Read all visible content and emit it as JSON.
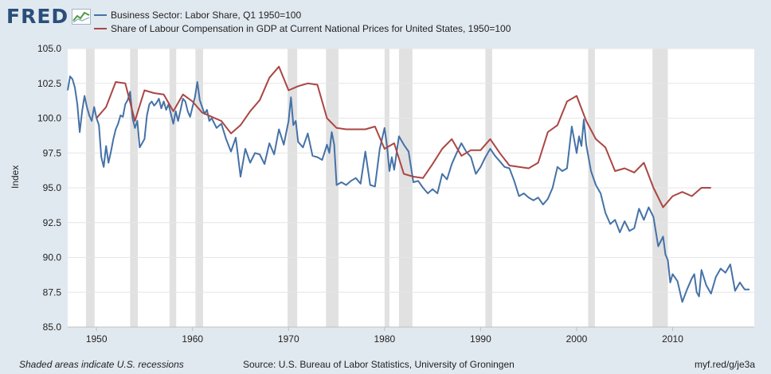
{
  "header": {
    "logo_text": "FRED",
    "logo_icon": "line-chart-icon"
  },
  "colors": {
    "background": "#e1e9f0",
    "plot_background": "#ffffff",
    "recession": "#e1e1e1",
    "series_1": "#4572a7",
    "series_2": "#aa4643",
    "brand": "#2a4e79"
  },
  "footer": {
    "note": "Shaded areas indicate U.S. recessions",
    "source": "Source: U.S. Bureau of Labor Statistics, University of Groningen",
    "short_url": "myf.red/g/je3a"
  },
  "chart_data": {
    "type": "line",
    "title": "",
    "ylabel": "Index",
    "xlabel": "",
    "xlim": [
      1947,
      2018.5
    ],
    "ylim": [
      85,
      105
    ],
    "y_ticks": [
      "85.0",
      "87.5",
      "90.0",
      "92.5",
      "95.0",
      "97.5",
      "100.0",
      "102.5",
      "105.0"
    ],
    "y_tick_values": [
      85,
      87.5,
      90,
      92.5,
      95,
      97.5,
      100,
      102.5,
      105
    ],
    "x_ticks": [
      "1950",
      "1960",
      "1970",
      "1980",
      "1990",
      "2000",
      "2010"
    ],
    "x_tick_values": [
      1950,
      1960,
      1970,
      1980,
      1990,
      2000,
      2010
    ],
    "grid": true,
    "legend_position": "top",
    "recessions": [
      [
        1948.9,
        1949.8
      ],
      [
        1953.5,
        1954.3
      ],
      [
        1957.6,
        1958.3
      ],
      [
        1960.3,
        1961.1
      ],
      [
        1969.9,
        1970.9
      ],
      [
        1973.9,
        1975.2
      ],
      [
        1980.0,
        1980.5
      ],
      [
        1981.5,
        1982.9
      ],
      [
        1990.5,
        1991.2
      ],
      [
        2001.2,
        2001.9
      ],
      [
        2007.9,
        2009.5
      ]
    ],
    "series": [
      {
        "name": "Business Sector: Labor Share, Q1 1950=100",
        "color": "#4572a7",
        "x": [
          1947.0,
          1947.25,
          1947.5,
          1947.75,
          1948.0,
          1948.25,
          1948.5,
          1948.75,
          1949.0,
          1949.25,
          1949.5,
          1949.75,
          1950.0,
          1950.25,
          1950.5,
          1950.75,
          1951.0,
          1951.25,
          1951.5,
          1951.75,
          1952.0,
          1952.25,
          1952.5,
          1952.75,
          1953.0,
          1953.25,
          1953.5,
          1953.75,
          1954.0,
          1954.25,
          1954.5,
          1954.75,
          1955.0,
          1955.25,
          1955.5,
          1955.75,
          1956.0,
          1956.25,
          1956.5,
          1956.75,
          1957.0,
          1957.25,
          1957.5,
          1957.75,
          1958.0,
          1958.25,
          1958.5,
          1958.75,
          1959.0,
          1959.25,
          1959.5,
          1959.75,
          1960.0,
          1960.25,
          1960.5,
          1960.75,
          1961.0,
          1961.25,
          1961.5,
          1961.75,
          1962.0,
          1962.5,
          1963.0,
          1963.5,
          1964.0,
          1964.5,
          1965.0,
          1965.5,
          1966.0,
          1966.5,
          1967.0,
          1967.5,
          1968.0,
          1968.5,
          1969.0,
          1969.5,
          1970.0,
          1970.25,
          1970.5,
          1970.75,
          1971.0,
          1971.5,
          1972.0,
          1972.5,
          1973.0,
          1973.5,
          1974.0,
          1974.25,
          1974.5,
          1974.75,
          1975.0,
          1975.5,
          1976.0,
          1976.5,
          1977.0,
          1977.5,
          1978.0,
          1978.5,
          1979.0,
          1979.5,
          1980.0,
          1980.25,
          1980.5,
          1980.75,
          1981.0,
          1981.5,
          1982.0,
          1982.5,
          1983.0,
          1983.5,
          1984.0,
          1984.5,
          1985.0,
          1985.5,
          1986.0,
          1986.5,
          1987.0,
          1987.5,
          1988.0,
          1988.5,
          1989.0,
          1989.5,
          1990.0,
          1990.5,
          1991.0,
          1991.5,
          1992.0,
          1992.5,
          1993.0,
          1993.5,
          1994.0,
          1994.5,
          1995.0,
          1995.5,
          1996.0,
          1996.5,
          1997.0,
          1997.5,
          1998.0,
          1998.5,
          1999.0,
          1999.5,
          2000.0,
          2000.25,
          2000.5,
          2000.75,
          2001.0,
          2001.5,
          2002.0,
          2002.5,
          2003.0,
          2003.5,
          2004.0,
          2004.5,
          2005.0,
          2005.5,
          2006.0,
          2006.5,
          2007.0,
          2007.5,
          2008.0,
          2008.5,
          2009.0,
          2009.25,
          2009.5,
          2009.75,
          2010.0,
          2010.5,
          2011.0,
          2011.5,
          2012.0,
          2012.25,
          2012.5,
          2012.75,
          2013.0,
          2013.5,
          2014.0,
          2014.5,
          2015.0,
          2015.5,
          2016.0,
          2016.5,
          2017.0,
          2017.5,
          2018.0
        ],
        "values": [
          102.0,
          103.0,
          102.8,
          102.2,
          101.0,
          99.0,
          100.5,
          101.6,
          100.8,
          100.2,
          99.8,
          100.8,
          100.0,
          99.5,
          97.2,
          96.5,
          98.0,
          96.8,
          97.6,
          98.5,
          99.2,
          99.6,
          100.2,
          100.1,
          101.0,
          101.3,
          101.9,
          100.0,
          99.3,
          99.8,
          97.9,
          98.2,
          98.5,
          100.2,
          101.0,
          101.2,
          100.9,
          101.1,
          101.4,
          100.7,
          101.2,
          100.6,
          101.0,
          100.3,
          99.6,
          100.5,
          99.8,
          100.6,
          101.4,
          101.2,
          100.5,
          100.1,
          100.8,
          101.5,
          102.6,
          101.3,
          100.8,
          100.3,
          100.6,
          99.8,
          100.0,
          99.3,
          99.6,
          98.5,
          97.6,
          98.6,
          95.8,
          97.8,
          96.8,
          97.5,
          97.4,
          96.7,
          98.2,
          97.4,
          99.2,
          98.1,
          99.8,
          101.5,
          99.5,
          99.8,
          98.3,
          97.9,
          98.9,
          97.3,
          97.2,
          97.0,
          98.1,
          97.5,
          99.0,
          98.1,
          95.2,
          95.4,
          95.2,
          95.5,
          95.7,
          95.3,
          97.6,
          95.2,
          95.1,
          97.8,
          99.3,
          98.0,
          96.2,
          97.2,
          96.3,
          98.7,
          98.1,
          97.6,
          95.4,
          95.5,
          95.0,
          94.6,
          94.9,
          94.6,
          96.0,
          95.6,
          96.7,
          97.5,
          98.2,
          97.6,
          97.2,
          96.0,
          96.5,
          97.2,
          97.8,
          97.3,
          96.9,
          96.5,
          96.4,
          95.5,
          94.4,
          94.6,
          94.3,
          94.1,
          94.3,
          93.8,
          94.2,
          95.0,
          96.5,
          96.2,
          96.4,
          99.4,
          97.5,
          98.7,
          98.0,
          99.9,
          98.1,
          96.2,
          95.2,
          94.6,
          93.2,
          92.4,
          92.7,
          91.8,
          92.6,
          91.9,
          92.1,
          93.5,
          92.7,
          93.6,
          92.9,
          90.8,
          91.5,
          90.2,
          89.8,
          88.2,
          88.8,
          88.3,
          86.8,
          87.7,
          88.5,
          88.8,
          87.5,
          87.2,
          89.1,
          88.0,
          87.4,
          88.6,
          89.2,
          88.9,
          89.5,
          87.6,
          88.2,
          87.7,
          87.7
        ]
      },
      {
        "name": "Share of Labour Compensation in GDP at Current National Prices for United States, 1950=100",
        "color": "#aa4643",
        "x": [
          1950,
          1951,
          1952,
          1953,
          1954,
          1955,
          1956,
          1957,
          1958,
          1959,
          1960,
          1961,
          1962,
          1963,
          1964,
          1965,
          1966,
          1967,
          1968,
          1969,
          1970,
          1971,
          1972,
          1973,
          1974,
          1975,
          1976,
          1977,
          1978,
          1979,
          1980,
          1981,
          1982,
          1983,
          1984,
          1985,
          1986,
          1987,
          1988,
          1989,
          1990,
          1991,
          1992,
          1993,
          1994,
          1995,
          1996,
          1997,
          1998,
          1999,
          2000,
          2001,
          2002,
          2003,
          2004,
          2005,
          2006,
          2007,
          2008,
          2009,
          2010,
          2011,
          2012,
          2013,
          2014
        ],
        "values": [
          100.0,
          100.8,
          102.6,
          102.5,
          99.8,
          102.0,
          101.8,
          101.7,
          100.5,
          101.7,
          101.2,
          100.4,
          100.1,
          99.8,
          98.9,
          99.5,
          100.5,
          101.3,
          102.9,
          103.7,
          102.0,
          102.3,
          102.5,
          102.4,
          100.0,
          99.3,
          99.2,
          99.2,
          99.2,
          99.4,
          97.8,
          98.2,
          96.0,
          95.8,
          95.7,
          96.7,
          97.8,
          98.5,
          97.3,
          97.7,
          97.7,
          98.5,
          97.5,
          96.6,
          96.5,
          96.4,
          96.8,
          99.0,
          99.5,
          101.2,
          101.6,
          99.8,
          98.5,
          97.9,
          96.2,
          96.4,
          96.1,
          96.8,
          95.0,
          93.6,
          94.4,
          94.7,
          94.4,
          95.0,
          95.0
        ]
      }
    ]
  }
}
